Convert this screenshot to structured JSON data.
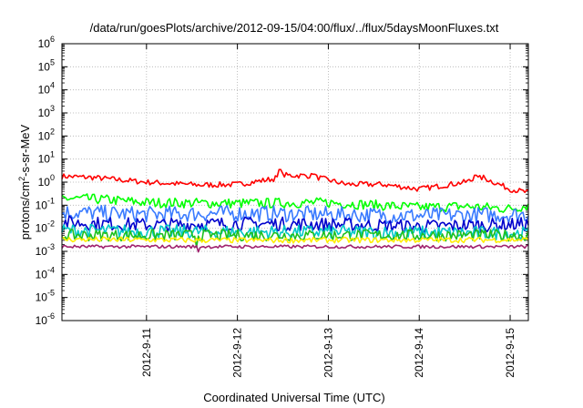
{
  "chart_data": {
    "type": "line",
    "title": "/data/run/goesPlots/archive/2012-09-15/04:00/flux/../flux/5daysMoonFluxes.txt",
    "xlabel": "Coordinated Universal Time (UTC)",
    "ylabel_parts": {
      "pre": "protons/cm",
      "sup": "2",
      "post": "-s-sr-MeV"
    },
    "yscale": "log",
    "ylim_exp": [
      -6,
      6
    ],
    "y_tick_exponents": [
      -6,
      -5,
      -4,
      -3,
      -2,
      -1,
      0,
      1,
      2,
      3,
      4,
      5,
      6
    ],
    "y_tick_base": "10",
    "xlim_days": [
      10.07,
      15.2
    ],
    "x_ticks": [
      {
        "day": 11,
        "label": "2012-9-11"
      },
      {
        "day": 12,
        "label": "2012-9-12"
      },
      {
        "day": 13,
        "label": "2012-9-13"
      },
      {
        "day": 14,
        "label": "2012-9-14"
      },
      {
        "day": 15,
        "label": "2012-9-15"
      }
    ],
    "grid": true,
    "series": [
      {
        "color": "#ff0000",
        "base": 1.2,
        "jitter": 0.12,
        "trend": [
          [
            10.07,
            1.8
          ],
          [
            10.4,
            1.6
          ],
          [
            11.0,
            1.0
          ],
          [
            11.6,
            0.75
          ],
          [
            12.0,
            0.8
          ],
          [
            12.4,
            1.4
          ],
          [
            12.5,
            2.0
          ],
          [
            12.8,
            1.9
          ],
          [
            13.2,
            0.8
          ],
          [
            13.6,
            0.8
          ],
          [
            14.0,
            0.5
          ],
          [
            14.5,
            1.0
          ],
          [
            14.7,
            1.6
          ],
          [
            15.0,
            0.5
          ],
          [
            15.2,
            0.35
          ]
        ],
        "spikes": [
          [
            12.47,
            3.5
          ],
          [
            12.85,
            2.2
          ],
          [
            14.62,
            2.0
          ]
        ]
      },
      {
        "color": "#00ff00",
        "base": 0.13,
        "jitter": 0.22,
        "trend": [
          [
            10.07,
            0.2
          ],
          [
            10.5,
            0.18
          ],
          [
            11.0,
            0.13
          ],
          [
            12.0,
            0.12
          ],
          [
            13.0,
            0.13
          ],
          [
            14.0,
            0.08
          ],
          [
            14.5,
            0.09
          ],
          [
            15.0,
            0.07
          ],
          [
            15.2,
            0.1
          ]
        ],
        "spikes": []
      },
      {
        "color": "#3a7bff",
        "base": 0.04,
        "jitter": 0.35,
        "trend": [
          [
            10.07,
            0.05
          ],
          [
            11.0,
            0.04
          ],
          [
            12.0,
            0.045
          ],
          [
            13.0,
            0.04
          ],
          [
            14.0,
            0.035
          ],
          [
            15.2,
            0.04
          ]
        ],
        "spikes": []
      },
      {
        "color": "#0000cc",
        "base": 0.015,
        "jitter": 0.3,
        "trend": [
          [
            10.07,
            0.018
          ],
          [
            11.0,
            0.014
          ],
          [
            12.0,
            0.016
          ],
          [
            13.0,
            0.015
          ],
          [
            14.0,
            0.012
          ],
          [
            15.2,
            0.015
          ]
        ],
        "spikes": []
      },
      {
        "color": "#00c8c8",
        "base": 0.007,
        "jitter": 0.3,
        "trend": [
          [
            10.07,
            0.008
          ],
          [
            11.5,
            0.007
          ],
          [
            13.0,
            0.007
          ],
          [
            15.2,
            0.006
          ]
        ],
        "spikes": []
      },
      {
        "color": "#1ec01e",
        "base": 0.005,
        "jitter": 0.25,
        "trend": [
          [
            10.07,
            0.005
          ],
          [
            15.2,
            0.005
          ]
        ],
        "spikes": [
          [
            11.55,
            0.0015
          ]
        ]
      },
      {
        "color": "#ffee00",
        "base": 0.0032,
        "jitter": 0.12,
        "trend": [
          [
            10.07,
            0.0033
          ],
          [
            12.0,
            0.003
          ],
          [
            15.2,
            0.0032
          ]
        ],
        "spikes": []
      },
      {
        "color": "#a0226e",
        "base": 0.0016,
        "jitter": 0.07,
        "trend": [
          [
            10.07,
            0.0016
          ],
          [
            15.2,
            0.0016
          ]
        ],
        "spikes": [
          [
            11.57,
            0.00095
          ]
        ]
      }
    ]
  }
}
